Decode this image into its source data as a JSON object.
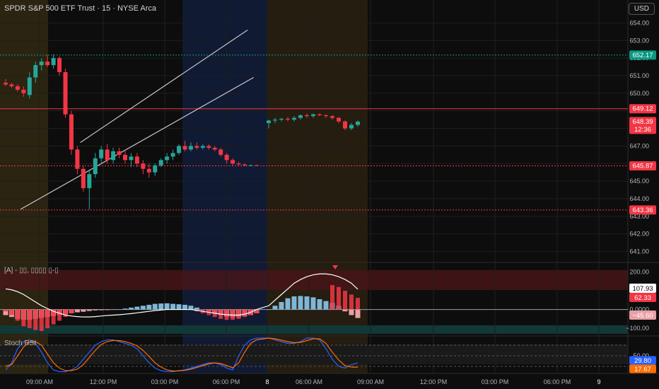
{
  "header": {
    "symbol_title": "SPDR S&P 500 ETF Trust · 15 · NYSE Arca",
    "currency_badge": "USD"
  },
  "indicators": {
    "macd_label": "[A] - ▯▯, ▯▯▯▯ ▯-▯",
    "stoch_label": "Stoch RSI"
  },
  "colors": {
    "background": "#0d0d0d",
    "bull": "#26a69a",
    "bear": "#f23645",
    "macd_hist_up": "#7fb6d6",
    "macd_hist_down": "#e8a0a6",
    "stoch_k": "#2962ff",
    "stoch_d": "#ff6d00"
  },
  "chart_data": [
    {
      "type": "candlestick",
      "x_ticks": [
        "09:00 AM",
        "12:00 PM",
        "03:00 PM",
        "06:00 PM",
        "8",
        "06:00 AM",
        "09:00 AM",
        "12:00 PM",
        "03:00 PM",
        "06:00 PM",
        "9"
      ],
      "y_ticks": [
        641,
        642,
        643,
        644,
        645,
        646,
        647,
        648,
        649,
        650,
        651,
        652,
        653,
        654
      ],
      "ylim": [
        640.5,
        654.5
      ],
      "price_labels": [
        {
          "value": "652.17",
          "color": "#089981"
        },
        {
          "value": "649.12",
          "color": "#f23645"
        },
        {
          "value": "648.39",
          "sub": "12:36",
          "color": "#f23645"
        },
        {
          "value": "645.87",
          "color": "#f23645"
        },
        {
          "value": "643.36",
          "color": "#f23645"
        }
      ],
      "horizontal_lines": [
        {
          "value": 652.17,
          "color": "#089981",
          "style": "dotted"
        },
        {
          "value": 649.12,
          "color": "#f23645",
          "style": "solid"
        },
        {
          "value": 645.87,
          "color": "#f23645",
          "style": "dotted"
        },
        {
          "value": 643.36,
          "color": "#f23645",
          "style": "dotted"
        }
      ],
      "trend_channel": {
        "upper": [
          [
            12.5,
            647.2
          ],
          [
            40.5,
            653.6
          ]
        ],
        "lower": [
          [
            2.5,
            643.4
          ],
          [
            41.5,
            650.9
          ]
        ]
      },
      "candles": [
        {
          "o": 650.6,
          "h": 650.8,
          "l": 650.4,
          "c": 650.5
        },
        {
          "o": 650.5,
          "h": 650.6,
          "l": 650.3,
          "c": 650.4
        },
        {
          "o": 650.4,
          "h": 650.5,
          "l": 650.1,
          "c": 650.2
        },
        {
          "o": 650.2,
          "h": 650.4,
          "l": 649.8,
          "c": 650.0
        },
        {
          "o": 649.9,
          "h": 651.2,
          "l": 649.7,
          "c": 650.9
        },
        {
          "o": 650.9,
          "h": 651.8,
          "l": 650.6,
          "c": 651.6
        },
        {
          "o": 651.6,
          "h": 652.0,
          "l": 651.3,
          "c": 651.8
        },
        {
          "o": 651.8,
          "h": 652.2,
          "l": 651.5,
          "c": 651.6
        },
        {
          "o": 651.6,
          "h": 652.2,
          "l": 651.4,
          "c": 652.0
        },
        {
          "o": 652.0,
          "h": 652.1,
          "l": 651.0,
          "c": 651.2
        },
        {
          "o": 651.2,
          "h": 651.4,
          "l": 648.6,
          "c": 648.8
        },
        {
          "o": 648.8,
          "h": 649.0,
          "l": 646.5,
          "c": 646.8
        },
        {
          "o": 646.8,
          "h": 647.0,
          "l": 645.4,
          "c": 645.7
        },
        {
          "o": 645.7,
          "h": 645.9,
          "l": 644.4,
          "c": 644.6
        },
        {
          "o": 644.6,
          "h": 645.6,
          "l": 643.4,
          "c": 645.4
        },
        {
          "o": 645.4,
          "h": 646.6,
          "l": 645.2,
          "c": 646.3
        },
        {
          "o": 646.3,
          "h": 647.0,
          "l": 646.0,
          "c": 646.8
        },
        {
          "o": 646.8,
          "h": 647.1,
          "l": 646.0,
          "c": 646.2
        },
        {
          "o": 646.2,
          "h": 646.9,
          "l": 646.0,
          "c": 646.7
        },
        {
          "o": 646.7,
          "h": 646.9,
          "l": 646.3,
          "c": 646.5
        },
        {
          "o": 646.5,
          "h": 646.8,
          "l": 646.0,
          "c": 646.2
        },
        {
          "o": 646.2,
          "h": 646.6,
          "l": 645.8,
          "c": 646.4
        },
        {
          "o": 646.4,
          "h": 646.6,
          "l": 645.8,
          "c": 646.0
        },
        {
          "o": 646.0,
          "h": 646.2,
          "l": 645.4,
          "c": 645.7
        },
        {
          "o": 645.7,
          "h": 646.0,
          "l": 645.2,
          "c": 645.5
        },
        {
          "o": 645.5,
          "h": 646.0,
          "l": 645.3,
          "c": 645.9
        },
        {
          "o": 645.9,
          "h": 646.3,
          "l": 645.8,
          "c": 646.2
        },
        {
          "o": 646.2,
          "h": 646.6,
          "l": 646.0,
          "c": 646.4
        },
        {
          "o": 646.4,
          "h": 646.8,
          "l": 646.2,
          "c": 646.6
        },
        {
          "o": 646.6,
          "h": 647.1,
          "l": 646.5,
          "c": 647.0
        },
        {
          "o": 647.0,
          "h": 647.3,
          "l": 646.7,
          "c": 646.8
        },
        {
          "o": 646.8,
          "h": 647.2,
          "l": 646.7,
          "c": 647.0
        },
        {
          "o": 647.0,
          "h": 647.2,
          "l": 646.8,
          "c": 646.9
        },
        {
          "o": 646.9,
          "h": 647.1,
          "l": 646.8,
          "c": 647.0
        },
        {
          "o": 647.0,
          "h": 647.1,
          "l": 646.8,
          "c": 646.9
        },
        {
          "o": 646.9,
          "h": 647.0,
          "l": 646.7,
          "c": 646.8
        },
        {
          "o": 646.8,
          "h": 646.9,
          "l": 646.4,
          "c": 646.5
        },
        {
          "o": 646.5,
          "h": 646.6,
          "l": 646.0,
          "c": 646.2
        },
        {
          "o": 646.2,
          "h": 646.3,
          "l": 645.9,
          "c": 646.0
        },
        {
          "o": 646.0,
          "h": 646.1,
          "l": 645.9,
          "c": 645.95
        },
        {
          "o": 645.95,
          "h": 646.0,
          "l": 645.85,
          "c": 645.9
        },
        {
          "o": 645.9,
          "h": 645.95,
          "l": 645.85,
          "c": 645.9
        },
        {
          "o": 645.9,
          "h": 645.95,
          "l": 645.85,
          "c": 645.88
        },
        {
          "o": 648.3,
          "h": 648.5,
          "l": 648.0,
          "c": 648.45
        },
        {
          "o": 648.45,
          "h": 648.6,
          "l": 648.3,
          "c": 648.5
        },
        {
          "o": 648.5,
          "h": 648.6,
          "l": 648.4,
          "c": 648.55
        },
        {
          "o": 648.55,
          "h": 648.65,
          "l": 648.4,
          "c": 648.5
        },
        {
          "o": 648.5,
          "h": 648.7,
          "l": 648.4,
          "c": 648.6
        },
        {
          "o": 648.6,
          "h": 648.8,
          "l": 648.5,
          "c": 648.75
        },
        {
          "o": 648.75,
          "h": 648.85,
          "l": 648.6,
          "c": 648.7
        },
        {
          "o": 648.7,
          "h": 648.85,
          "l": 648.6,
          "c": 648.8
        },
        {
          "o": 648.8,
          "h": 648.85,
          "l": 648.7,
          "c": 648.75
        },
        {
          "o": 648.75,
          "h": 648.8,
          "l": 648.6,
          "c": 648.7
        },
        {
          "o": 648.7,
          "h": 648.75,
          "l": 648.5,
          "c": 648.6
        },
        {
          "o": 648.6,
          "h": 648.65,
          "l": 648.3,
          "c": 648.4
        },
        {
          "o": 648.4,
          "h": 648.45,
          "l": 647.9,
          "c": 648.0
        },
        {
          "o": 648.0,
          "h": 648.3,
          "l": 647.9,
          "c": 648.2
        },
        {
          "o": 648.2,
          "h": 648.45,
          "l": 648.1,
          "c": 648.39
        }
      ]
    },
    {
      "type": "bar",
      "name": "macd",
      "y_ticks": [
        "200.00",
        "100.00",
        "0.0000",
        "−100.00"
      ],
      "tick_values": [
        200,
        100,
        0,
        -100
      ],
      "ylim": [
        -130,
        240
      ],
      "value_labels": [
        {
          "value": "107.93",
          "color": "#ffffff"
        },
        {
          "value": "62.33",
          "color": "#f23645"
        },
        {
          "value": "−45.60",
          "color": "#e8a0a6"
        }
      ],
      "histogram": [
        -30,
        -40,
        -50,
        -55,
        -55,
        -50,
        -45,
        -40,
        -35,
        -30,
        -25,
        -20,
        -15,
        -12,
        -8,
        -5,
        -4,
        -3,
        -2,
        0,
        5,
        10,
        15,
        20,
        25,
        30,
        32,
        33,
        30,
        28,
        25,
        20,
        10,
        0,
        -10,
        -20,
        -30,
        -38,
        -42,
        -40,
        -35,
        -30,
        -20,
        0,
        20,
        40,
        60,
        70,
        72,
        70,
        65,
        55,
        45,
        35,
        20,
        -10,
        -30,
        -45.6
      ],
      "red_bars": [
        -10,
        -30,
        -60,
        -90,
        -100,
        -110,
        -115,
        -100,
        -80,
        -60,
        -40,
        -20,
        0,
        0,
        0,
        0,
        0,
        0,
        0,
        0,
        0,
        0,
        0,
        0,
        0,
        0,
        0,
        0,
        0,
        0,
        0,
        0,
        -10,
        -20,
        -30,
        -40,
        -50,
        -55,
        -55,
        -50,
        -40,
        -30,
        -20,
        0,
        0,
        0,
        0,
        0,
        0,
        0,
        0,
        0,
        0,
        130,
        120,
        100,
        80,
        62.33
      ],
      "line": [
        110,
        105,
        95,
        80,
        60,
        40,
        20,
        5,
        -10,
        -20,
        -30,
        -35,
        -38,
        -40,
        -40,
        -38,
        -35,
        -32,
        -30,
        -28,
        -25,
        -22,
        -18,
        -14,
        -10,
        -6,
        -3,
        0,
        0,
        0,
        0,
        0,
        -5,
        -10,
        -15,
        -20,
        -25,
        -28,
        -30,
        -30,
        -25,
        -15,
        0,
        20,
        50,
        80,
        110,
        140,
        160,
        175,
        185,
        190,
        190,
        185,
        175,
        160,
        140,
        107.93
      ]
    },
    {
      "type": "line",
      "name": "stoch_rsi",
      "y_ticks": [
        "50.00"
      ],
      "ylim": [
        0,
        100
      ],
      "value_labels": [
        {
          "value": "29.80",
          "color": "#2962ff"
        },
        {
          "value": "17.67",
          "color": "#ff6d00"
        }
      ],
      "series": [
        {
          "name": "K",
          "values": [
            10,
            30,
            70,
            90,
            95,
            85,
            60,
            30,
            10,
            5,
            5,
            10,
            20,
            40,
            60,
            80,
            90,
            95,
            95,
            90,
            85,
            80,
            70,
            50,
            30,
            15,
            8,
            5,
            5,
            8,
            10,
            15,
            20,
            25,
            30,
            30,
            25,
            15,
            10,
            50,
            80,
            95,
            100,
            100,
            95,
            90,
            85,
            85,
            90,
            100,
            100,
            95,
            70,
            40,
            20,
            15,
            25,
            29.8
          ]
        },
        {
          "name": "D",
          "values": [
            20,
            25,
            50,
            75,
            88,
            90,
            80,
            55,
            30,
            15,
            8,
            8,
            12,
            25,
            45,
            65,
            82,
            90,
            93,
            93,
            90,
            85,
            78,
            65,
            48,
            30,
            18,
            10,
            7,
            7,
            9,
            12,
            17,
            22,
            27,
            30,
            28,
            22,
            16,
            30,
            60,
            85,
            95,
            100,
            98,
            94,
            90,
            87,
            88,
            93,
            98,
            98,
            85,
            60,
            38,
            22,
            18,
            17.67
          ]
        }
      ]
    }
  ]
}
